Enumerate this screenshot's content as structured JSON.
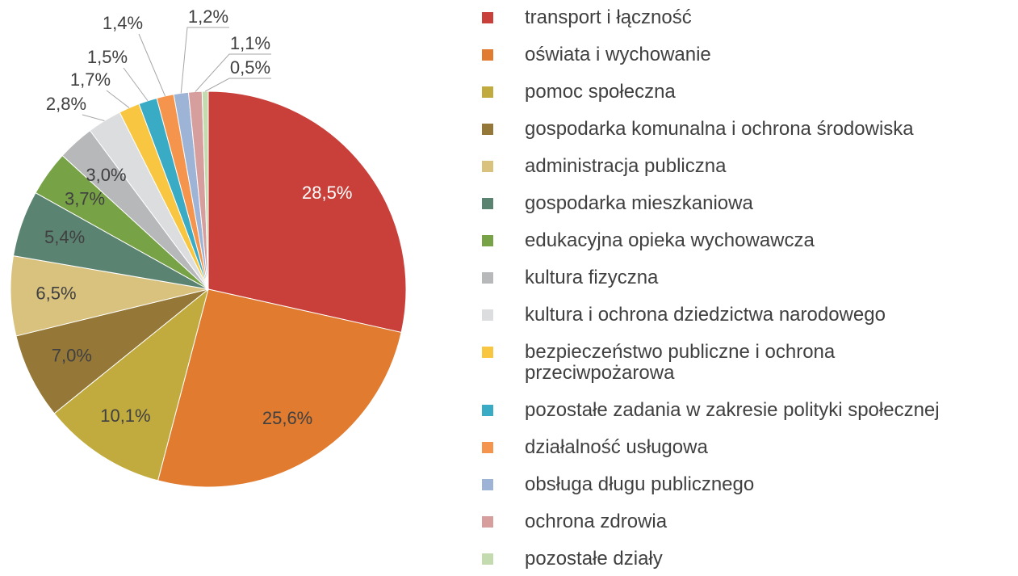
{
  "chart_data": {
    "type": "pie",
    "categories": [
      "transport i łączność",
      "oświata i wychowanie",
      "pomoc społeczna",
      "gospodarka komunalna i ochrona środowiska",
      "administracja publiczna",
      "gospodarka mieszkaniowa",
      "edukacyjna opieka wychowawcza",
      "kultura fizyczna",
      "kultura i ochrona dziedzictwa narodowego",
      "bezpieczeństwo publiczne i ochrona przeciwpożarowa",
      "pozostałe zadania w zakresie polityki społecznej",
      "działalność usługowa",
      "obsługa długu publicznego",
      "ochrona zdrowia",
      "pozostałe działy"
    ],
    "values": [
      28.5,
      25.6,
      10.1,
      7.0,
      6.5,
      5.4,
      3.7,
      3.0,
      2.8,
      1.7,
      1.5,
      1.4,
      1.2,
      1.1,
      0.5
    ],
    "value_labels": [
      "28,5%",
      "25,6%",
      "10,1%",
      "7,0%",
      "6,5%",
      "5,4%",
      "3,7%",
      "3,0%",
      "2,8%",
      "1,7%",
      "1,5%",
      "1,4%",
      "1,2%",
      "1,1%",
      "0,5%"
    ],
    "colors": [
      "#c9403a",
      "#e07b30",
      "#c1ab3f",
      "#957738",
      "#d8c27e",
      "#5b8372",
      "#77a246",
      "#b7b8ba",
      "#dcdddf",
      "#f8c640",
      "#3aabc4",
      "#f5944c",
      "#9eb4d6",
      "#d79e9e",
      "#c4dbb0"
    ],
    "legend": "right"
  }
}
